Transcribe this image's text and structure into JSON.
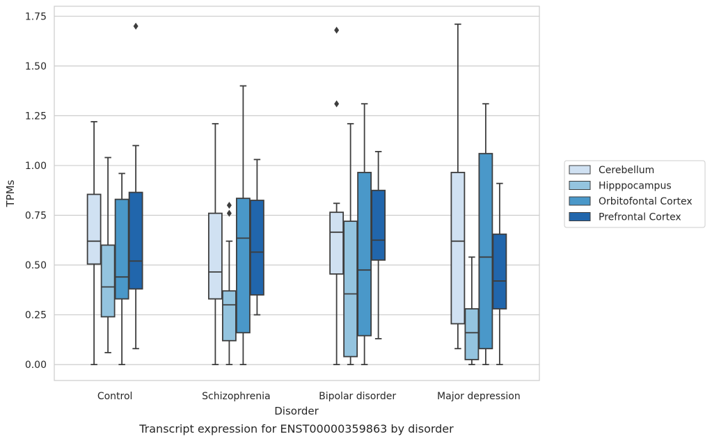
{
  "chart_data": {
    "type": "box",
    "xlabel": "Disorder",
    "ylabel": "TPMs",
    "caption": "Transcript expression for ENST00000359863 by disorder",
    "ylim": [
      -0.08,
      1.8
    ],
    "yticks": [
      "0.00",
      "0.25",
      "0.50",
      "0.75",
      "1.00",
      "1.25",
      "1.50",
      "1.75"
    ],
    "ytick_values": [
      0,
      0.25,
      0.5,
      0.75,
      1.0,
      1.25,
      1.5,
      1.75
    ],
    "grid": true,
    "legend_position": "right",
    "categories": [
      "Control",
      "Schizophrenia",
      "Bipolar disorder",
      "Major depression"
    ],
    "series": [
      {
        "name": "Cerebellum",
        "color": "#d0e1f2",
        "boxes": [
          {
            "whislo": 0.0,
            "q1": 0.505,
            "med": 0.62,
            "q3": 0.855,
            "whishi": 1.22,
            "fliers": []
          },
          {
            "whislo": 0.0,
            "q1": 0.33,
            "med": 0.465,
            "q3": 0.76,
            "whishi": 1.21,
            "fliers": []
          },
          {
            "whislo": 0.0,
            "q1": 0.455,
            "med": 0.665,
            "q3": 0.765,
            "whishi": 0.81,
            "fliers": [
              1.31,
              1.68
            ]
          },
          {
            "whislo": 0.08,
            "q1": 0.205,
            "med": 0.62,
            "q3": 0.965,
            "whishi": 1.71,
            "fliers": []
          }
        ]
      },
      {
        "name": "Hipppocampus",
        "color": "#94c4df",
        "boxes": [
          {
            "whislo": 0.06,
            "q1": 0.24,
            "med": 0.39,
            "q3": 0.6,
            "whishi": 1.04,
            "fliers": []
          },
          {
            "whislo": 0.0,
            "q1": 0.12,
            "med": 0.3,
            "q3": 0.37,
            "whishi": 0.62,
            "fliers": [
              0.76,
              0.8
            ]
          },
          {
            "whislo": 0.0,
            "q1": 0.04,
            "med": 0.355,
            "q3": 0.72,
            "whishi": 1.21,
            "fliers": []
          },
          {
            "whislo": 0.0,
            "q1": 0.025,
            "med": 0.16,
            "q3": 0.28,
            "whishi": 0.54,
            "fliers": []
          }
        ]
      },
      {
        "name": "Orbitofontal Cortex",
        "color": "#4a98c9",
        "boxes": [
          {
            "whislo": 0.0,
            "q1": 0.33,
            "med": 0.44,
            "q3": 0.83,
            "whishi": 0.96,
            "fliers": []
          },
          {
            "whislo": 0.0,
            "q1": 0.16,
            "med": 0.635,
            "q3": 0.835,
            "whishi": 1.4,
            "fliers": []
          },
          {
            "whislo": 0.0,
            "q1": 0.145,
            "med": 0.475,
            "q3": 0.965,
            "whishi": 1.31,
            "fliers": []
          },
          {
            "whislo": 0.0,
            "q1": 0.08,
            "med": 0.54,
            "q3": 1.06,
            "whishi": 1.31,
            "fliers": []
          }
        ]
      },
      {
        "name": "Prefrontal Cortex",
        "color": "#2166ac",
        "boxes": [
          {
            "whislo": 0.08,
            "q1": 0.38,
            "med": 0.52,
            "q3": 0.865,
            "whishi": 1.1,
            "fliers": [
              1.7
            ]
          },
          {
            "whislo": 0.25,
            "q1": 0.35,
            "med": 0.565,
            "q3": 0.825,
            "whishi": 1.03,
            "fliers": []
          },
          {
            "whislo": 0.13,
            "q1": 0.525,
            "med": 0.625,
            "q3": 0.875,
            "whishi": 1.07,
            "fliers": []
          },
          {
            "whislo": 0.0,
            "q1": 0.28,
            "med": 0.42,
            "q3": 0.655,
            "whishi": 0.91,
            "fliers": []
          }
        ]
      }
    ]
  }
}
